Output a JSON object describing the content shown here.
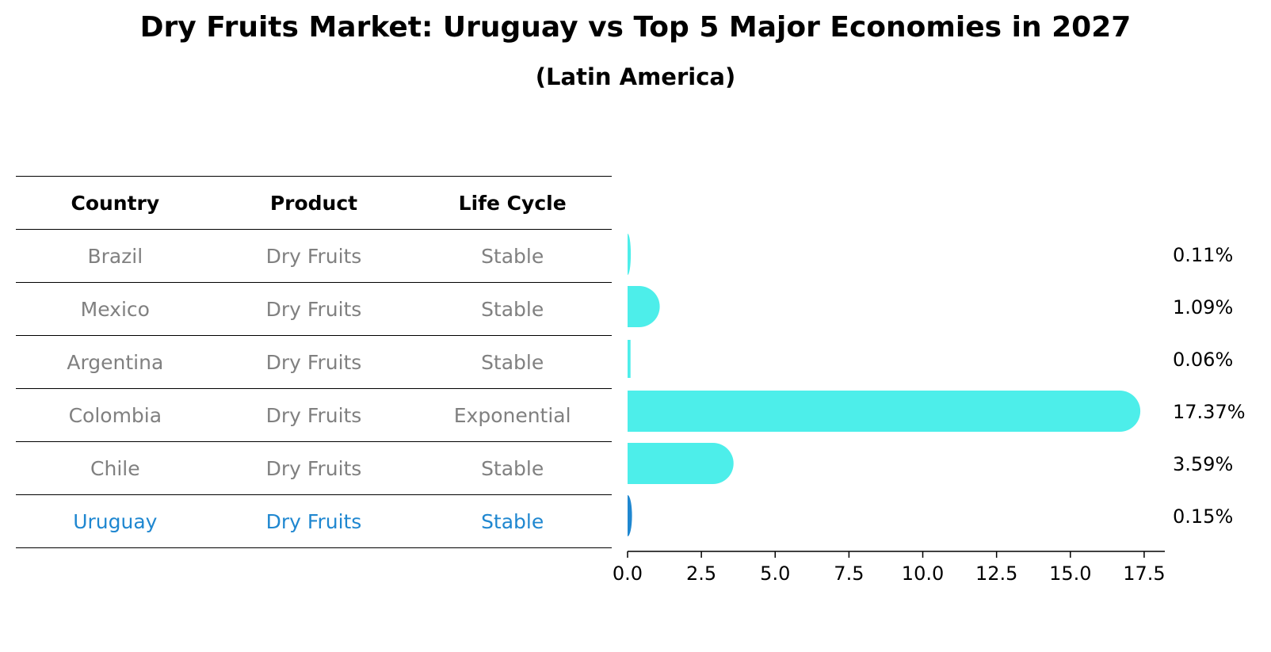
{
  "title": "Dry Fruits Market: Uruguay vs Top 5 Major Economies in 2027",
  "subtitle": "(Latin America)",
  "table": {
    "headers": [
      "Country",
      "Product",
      "Life Cycle"
    ],
    "rows": [
      {
        "country": "Brazil",
        "product": "Dry Fruits",
        "life_cycle": "Stable",
        "highlight": false
      },
      {
        "country": "Mexico",
        "product": "Dry Fruits",
        "life_cycle": "Stable",
        "highlight": false
      },
      {
        "country": "Argentina",
        "product": "Dry Fruits",
        "life_cycle": "Stable",
        "highlight": false
      },
      {
        "country": "Colombia",
        "product": "Dry Fruits",
        "life_cycle": "Exponential",
        "highlight": false
      },
      {
        "country": "Chile",
        "product": "Dry Fruits",
        "life_cycle": "Stable",
        "highlight": false
      },
      {
        "country": "Uruguay",
        "product": "Dry Fruits",
        "life_cycle": "Stable",
        "highlight": true
      }
    ]
  },
  "colors": {
    "bar": "#4deeea",
    "highlight_bar": "#1f87d0",
    "highlight_text": "#1f87d0",
    "muted_text": "#808080"
  },
  "chart_data": {
    "type": "bar",
    "orientation": "horizontal",
    "categories": [
      "Brazil",
      "Mexico",
      "Argentina",
      "Colombia",
      "Chile",
      "Uruguay"
    ],
    "values": [
      0.11,
      1.09,
      0.06,
      17.37,
      3.59,
      0.15
    ],
    "value_labels": [
      "0.11%",
      "1.09%",
      "0.06%",
      "17.37%",
      "3.59%",
      "0.15%"
    ],
    "xlim": [
      0,
      18.2
    ],
    "xticks": [
      0.0,
      2.5,
      5.0,
      7.5,
      10.0,
      12.5,
      15.0,
      17.5
    ],
    "xtick_labels": [
      "0.0",
      "2.5",
      "5.0",
      "7.5",
      "10.0",
      "12.5",
      "15.0",
      "17.5"
    ],
    "bar_style": "rounded-end",
    "grid": false,
    "legend": false
  }
}
